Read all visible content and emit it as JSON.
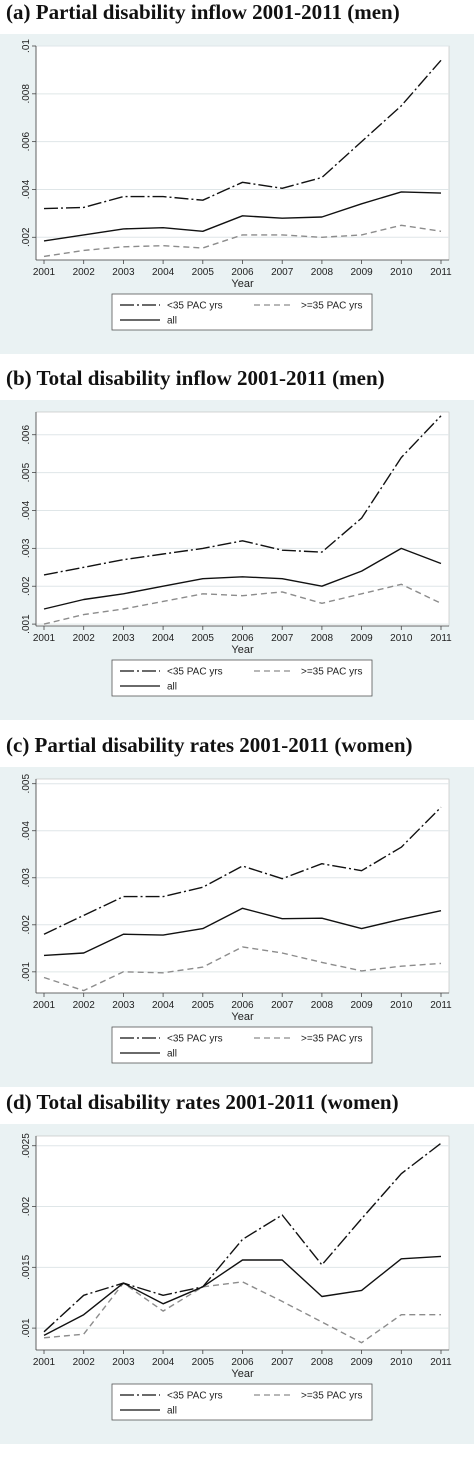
{
  "style": {
    "background": "#eaf2f3",
    "plot_background": "#ffffff",
    "grid": "#dfe6e8",
    "series_colors": [
      "#111111",
      "#8c8c8c",
      "#111111"
    ],
    "series_dash": [
      "14 3 2 3",
      "6 4",
      "none"
    ]
  },
  "chart_data": [
    {
      "type": "line",
      "title": "(a) Partial disability inflow 2001-2011 (men)",
      "xlabel": "Year",
      "ylabel": "",
      "x": [
        2001,
        2002,
        2003,
        2004,
        2005,
        2006,
        2007,
        2008,
        2009,
        2010,
        2011
      ],
      "ylim": [
        0.00105,
        0.01
      ],
      "yticks": [
        ".002",
        ".004",
        ".006",
        ".008",
        ".01"
      ],
      "ytick_values": [
        0.002,
        0.004,
        0.006,
        0.008,
        0.01
      ],
      "grid": true,
      "legend_position": "bottom",
      "series": [
        {
          "name": "<35 PAC yrs",
          "values": [
            0.0032,
            0.00325,
            0.0037,
            0.0037,
            0.00355,
            0.0043,
            0.00405,
            0.0045,
            0.006,
            0.0075,
            0.0094
          ]
        },
        {
          "name": ">=35 PAC yrs",
          "values": [
            0.0012,
            0.00145,
            0.0016,
            0.00165,
            0.00155,
            0.0021,
            0.0021,
            0.002,
            0.0021,
            0.0025,
            0.00225
          ]
        },
        {
          "name": "all",
          "values": [
            0.00185,
            0.0021,
            0.00235,
            0.0024,
            0.00225,
            0.0029,
            0.0028,
            0.00285,
            0.0034,
            0.0039,
            0.00385
          ]
        }
      ]
    },
    {
      "type": "line",
      "title": "(b) Total disability inflow 2001-2011 (men)",
      "xlabel": "Year",
      "ylabel": "",
      "x": [
        2001,
        2002,
        2003,
        2004,
        2005,
        2006,
        2007,
        2008,
        2009,
        2010,
        2011
      ],
      "ylim": [
        0.00095,
        0.0066
      ],
      "yticks": [
        ".001",
        ".002",
        ".003",
        ".004",
        ".005",
        ".006"
      ],
      "ytick_values": [
        0.001,
        0.002,
        0.003,
        0.004,
        0.005,
        0.006
      ],
      "grid": true,
      "legend_position": "bottom",
      "series": [
        {
          "name": "<35 PAC yrs",
          "values": [
            0.0023,
            0.0025,
            0.0027,
            0.00285,
            0.003,
            0.0032,
            0.00295,
            0.0029,
            0.0038,
            0.0054,
            0.0065
          ]
        },
        {
          "name": ">=35 PAC yrs",
          "values": [
            0.001,
            0.00125,
            0.0014,
            0.0016,
            0.0018,
            0.00175,
            0.00185,
            0.00155,
            0.0018,
            0.00205,
            0.00155
          ]
        },
        {
          "name": "all",
          "values": [
            0.0014,
            0.00165,
            0.0018,
            0.002,
            0.0022,
            0.00225,
            0.0022,
            0.002,
            0.0024,
            0.003,
            0.0026
          ]
        }
      ]
    },
    {
      "type": "line",
      "title": "(c) Partial disability rates 2001-2011 (women)",
      "xlabel": "Year",
      "ylabel": "",
      "x": [
        2001,
        2002,
        2003,
        2004,
        2005,
        2006,
        2007,
        2008,
        2009,
        2010,
        2011
      ],
      "ylim": [
        0.00055,
        0.0051
      ],
      "yticks": [
        ".001",
        ".002",
        ".003",
        ".004",
        ".005"
      ],
      "ytick_values": [
        0.001,
        0.002,
        0.003,
        0.004,
        0.005
      ],
      "grid": true,
      "legend_position": "bottom",
      "series": [
        {
          "name": "<35 PAC yrs",
          "values": [
            0.0018,
            0.0022,
            0.0026,
            0.0026,
            0.0028,
            0.00325,
            0.00298,
            0.0033,
            0.00315,
            0.00365,
            0.0045
          ]
        },
        {
          "name": ">=35 PAC yrs",
          "values": [
            0.00088,
            0.0006,
            0.001,
            0.00098,
            0.0011,
            0.00153,
            0.0014,
            0.0012,
            0.00102,
            0.00112,
            0.00118
          ]
        },
        {
          "name": "all",
          "values": [
            0.00135,
            0.0014,
            0.0018,
            0.00178,
            0.00192,
            0.00235,
            0.00213,
            0.00214,
            0.00192,
            0.00212,
            0.0023
          ]
        }
      ]
    },
    {
      "type": "line",
      "title": "(d) Total disability rates 2001-2011 (women)",
      "xlabel": "Year",
      "ylabel": "",
      "x": [
        2001,
        2002,
        2003,
        2004,
        2005,
        2006,
        2007,
        2008,
        2009,
        2010,
        2011
      ],
      "ylim": [
        0.00082,
        0.00258
      ],
      "yticks": [
        ".001",
        ".0015",
        ".002",
        ".0025"
      ],
      "ytick_values": [
        0.001,
        0.0015,
        0.002,
        0.0025
      ],
      "grid": true,
      "legend_position": "bottom",
      "series": [
        {
          "name": "<35 PAC yrs",
          "values": [
            0.00097,
            0.00127,
            0.00137,
            0.00127,
            0.00134,
            0.00173,
            0.00193,
            0.00152,
            0.0019,
            0.00227,
            0.00252
          ]
        },
        {
          "name": ">=35 PAC yrs",
          "values": [
            0.00092,
            0.00095,
            0.00137,
            0.00114,
            0.00134,
            0.00138,
            0.00122,
            0.00105,
            0.00088,
            0.00111,
            0.00111
          ]
        },
        {
          "name": "all",
          "values": [
            0.00094,
            0.00111,
            0.00137,
            0.0012,
            0.00134,
            0.00156,
            0.00156,
            0.00126,
            0.00131,
            0.00157,
            0.00159
          ]
        }
      ]
    }
  ]
}
